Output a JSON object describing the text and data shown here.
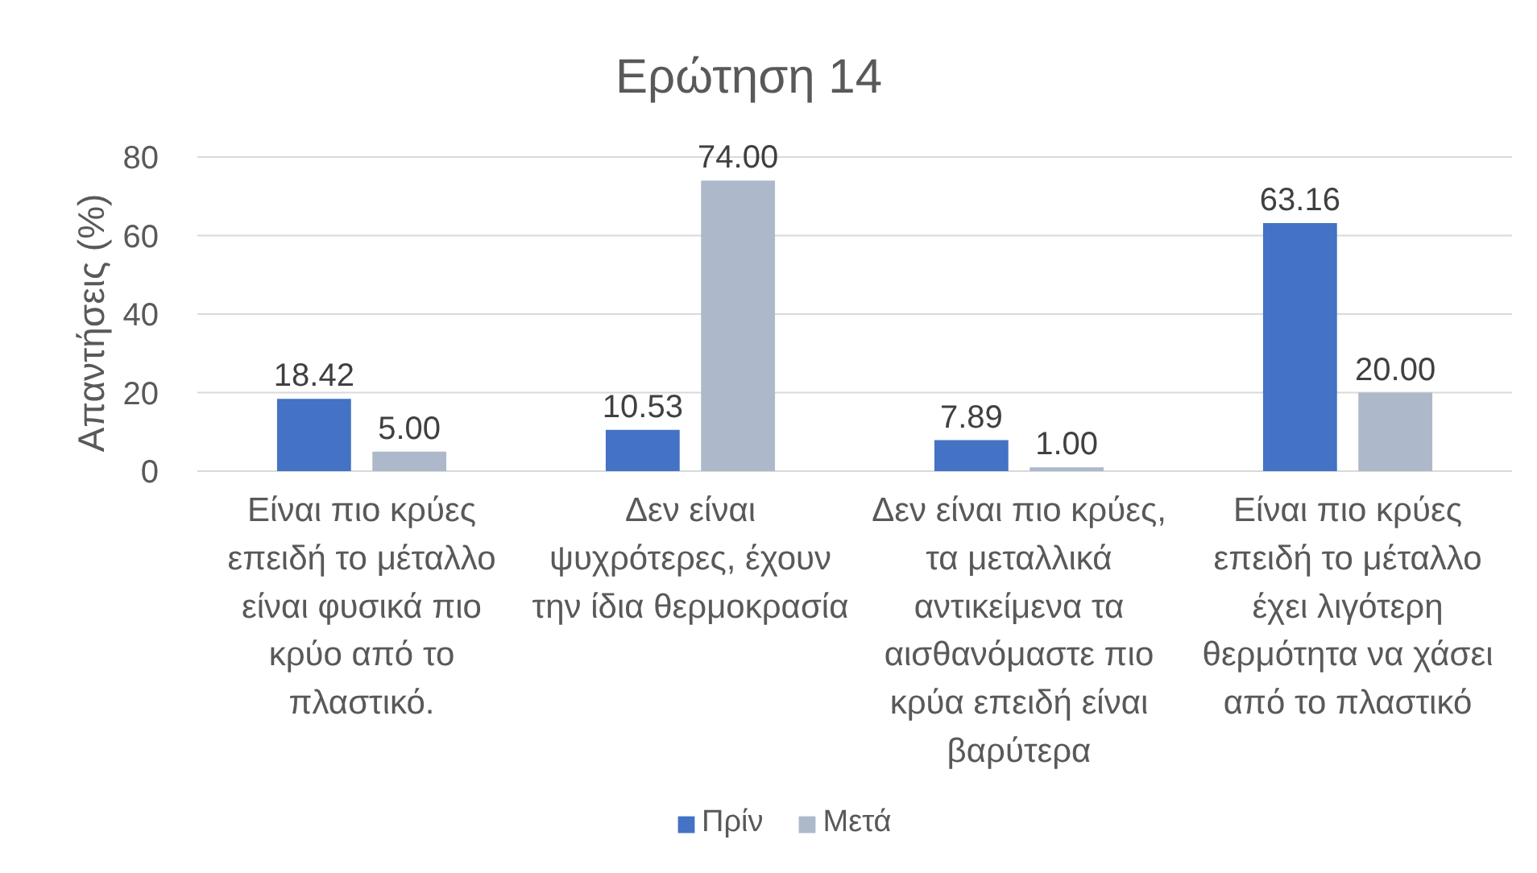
{
  "chart_data": {
    "type": "bar",
    "title": "Ερώτηση 14",
    "ylabel": "Απαντήσεις  (%)",
    "categories": [
      "Είναι πιο κρύες επειδή το μέταλλο είναι φυσικά πιο κρύο από το πλαστικό.",
      "Δεν είναι ψυχρότερες, έχουν την ίδια θερμοκρασία",
      "Δεν είναι πιο κρύες, τα μεταλλικά αντικείμενα τα αισθανόμαστε πιο κρύα επειδή είναι βαρύτερα",
      "Είναι πιο κρύες επειδή το μέταλλο έχει λιγότερη θερμότητα να χάσει από το πλαστικό"
    ],
    "series": [
      {
        "name": "Πρίν",
        "color": "#4472c4",
        "values": [
          18.42,
          10.53,
          7.89,
          63.16
        ],
        "value_labels": [
          "18.42",
          "10.53",
          "7.89",
          "63.16"
        ]
      },
      {
        "name": "Μετά",
        "color": "#adb9ca",
        "values": [
          5.0,
          74.0,
          1.0,
          20.0
        ],
        "value_labels": [
          "5.00",
          "74.00",
          "1.00",
          "20.00"
        ]
      }
    ],
    "ylim": [
      0,
      80
    ],
    "yticks": [
      0,
      20,
      40,
      60,
      80
    ],
    "grid": "y",
    "legend": "bottom"
  }
}
